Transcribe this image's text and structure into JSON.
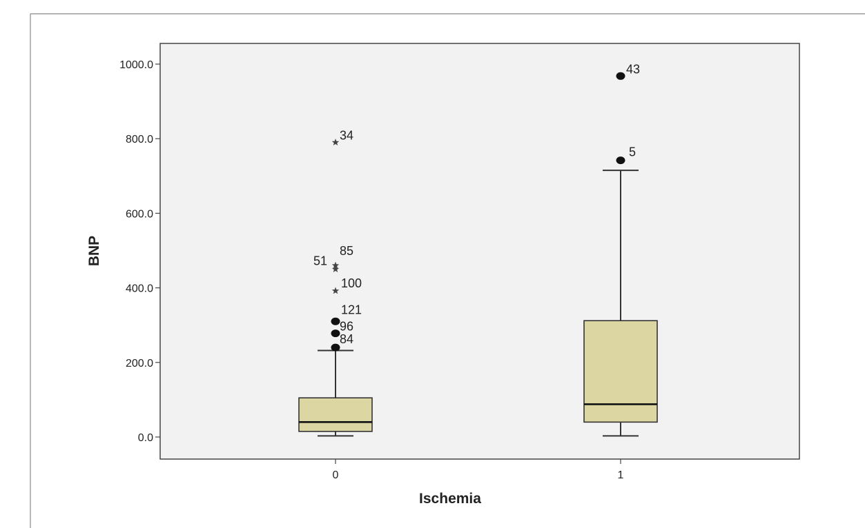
{
  "chart_data": {
    "type": "boxplot",
    "xlabel": "Ischemia",
    "ylabel": "BNP",
    "ylim": [
      -55,
      1055
    ],
    "y_ticks": [
      0,
      200,
      400,
      600,
      800,
      1000
    ],
    "y_tick_labels": [
      "0.0",
      "200.0",
      "400.0",
      "600.0",
      "800.0",
      "1000.0"
    ],
    "grid": false,
    "colors": {
      "box_fill": "#DCD6A2",
      "plot_background": "#F2F2F2",
      "stroke": "#333333"
    },
    "groups": [
      {
        "category": "0",
        "whisker_low": 3,
        "q1": 15,
        "median": 40,
        "q3": 105,
        "whisker_high": 232,
        "outliers": [
          {
            "label": "84",
            "value": 240,
            "marker": "circle"
          },
          {
            "label": "96",
            "value": 278,
            "marker": "circle"
          },
          {
            "label": "121",
            "value": 310,
            "marker": "circle"
          },
          {
            "label": "100",
            "value": 392,
            "marker": "star"
          },
          {
            "label": "51",
            "value": 450,
            "marker": "star"
          },
          {
            "label": "85",
            "value": 460,
            "marker": "star"
          },
          {
            "label": "34",
            "value": 790,
            "marker": "star"
          }
        ]
      },
      {
        "category": "1",
        "whisker_low": 3,
        "q1": 40,
        "median": 88,
        "q3": 312,
        "whisker_high": 715,
        "outliers": [
          {
            "label": "5",
            "value": 742,
            "marker": "circle"
          },
          {
            "label": "43",
            "value": 968,
            "marker": "circle"
          }
        ]
      }
    ]
  }
}
